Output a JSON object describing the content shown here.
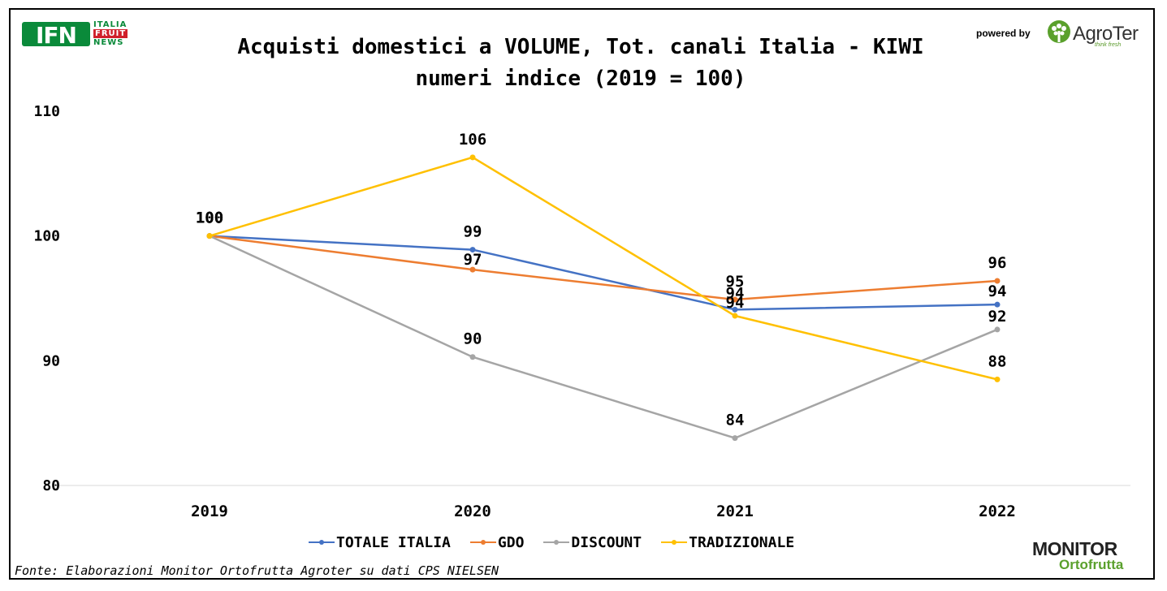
{
  "header": {
    "title_line1": "Acquisti domestici a VOLUME, Tot. canali Italia - KIWI",
    "title_line2": "numeri indice (2019 = 100)",
    "powered_by": "powered by"
  },
  "logos": {
    "ifn": {
      "mark": "IFN",
      "words": [
        "ITALIA",
        "FRUIT",
        "NEWS"
      ]
    },
    "agroter": {
      "name": "AgroTer",
      "tagline": "think fresh"
    },
    "monitor": {
      "top": "MONITOR",
      "bottom": "Ortofrutta"
    }
  },
  "footer": {
    "source": "Fonte: Elaborazioni Monitor Ortofrutta Agroter su dati CPS NIELSEN"
  },
  "colors": {
    "totale": "#4472C4",
    "gdo": "#ED7D31",
    "discount": "#A5A5A5",
    "tradizionale": "#FFC000",
    "gridline": "#d9d9d9"
  },
  "chart_data": {
    "type": "line",
    "x": [
      "2019",
      "2020",
      "2021",
      "2022"
    ],
    "ylim": [
      80,
      110
    ],
    "yticks": [
      "80",
      "90",
      "100",
      "110"
    ],
    "grid": "baseline only",
    "legend_position": "bottom",
    "series": [
      {
        "key": "totale",
        "name": "TOTALE ITALIA",
        "values": [
          100,
          98.9,
          94.1,
          94.5
        ],
        "labels": [
          "100",
          "99",
          "94",
          "94"
        ]
      },
      {
        "key": "gdo",
        "name": "GDO",
        "values": [
          100,
          97.3,
          94.9,
          96.4
        ],
        "labels": [
          "100",
          "97",
          "95",
          "96"
        ]
      },
      {
        "key": "discount",
        "name": "DISCOUNT",
        "values": [
          100,
          90.3,
          83.8,
          92.5
        ],
        "labels": [
          "100",
          "90",
          "84",
          "92"
        ]
      },
      {
        "key": "tradizionale",
        "name": "TRADIZIONALE",
        "values": [
          100,
          106.3,
          93.6,
          88.5
        ],
        "labels": [
          "100",
          "106",
          "94",
          "88"
        ]
      }
    ]
  }
}
